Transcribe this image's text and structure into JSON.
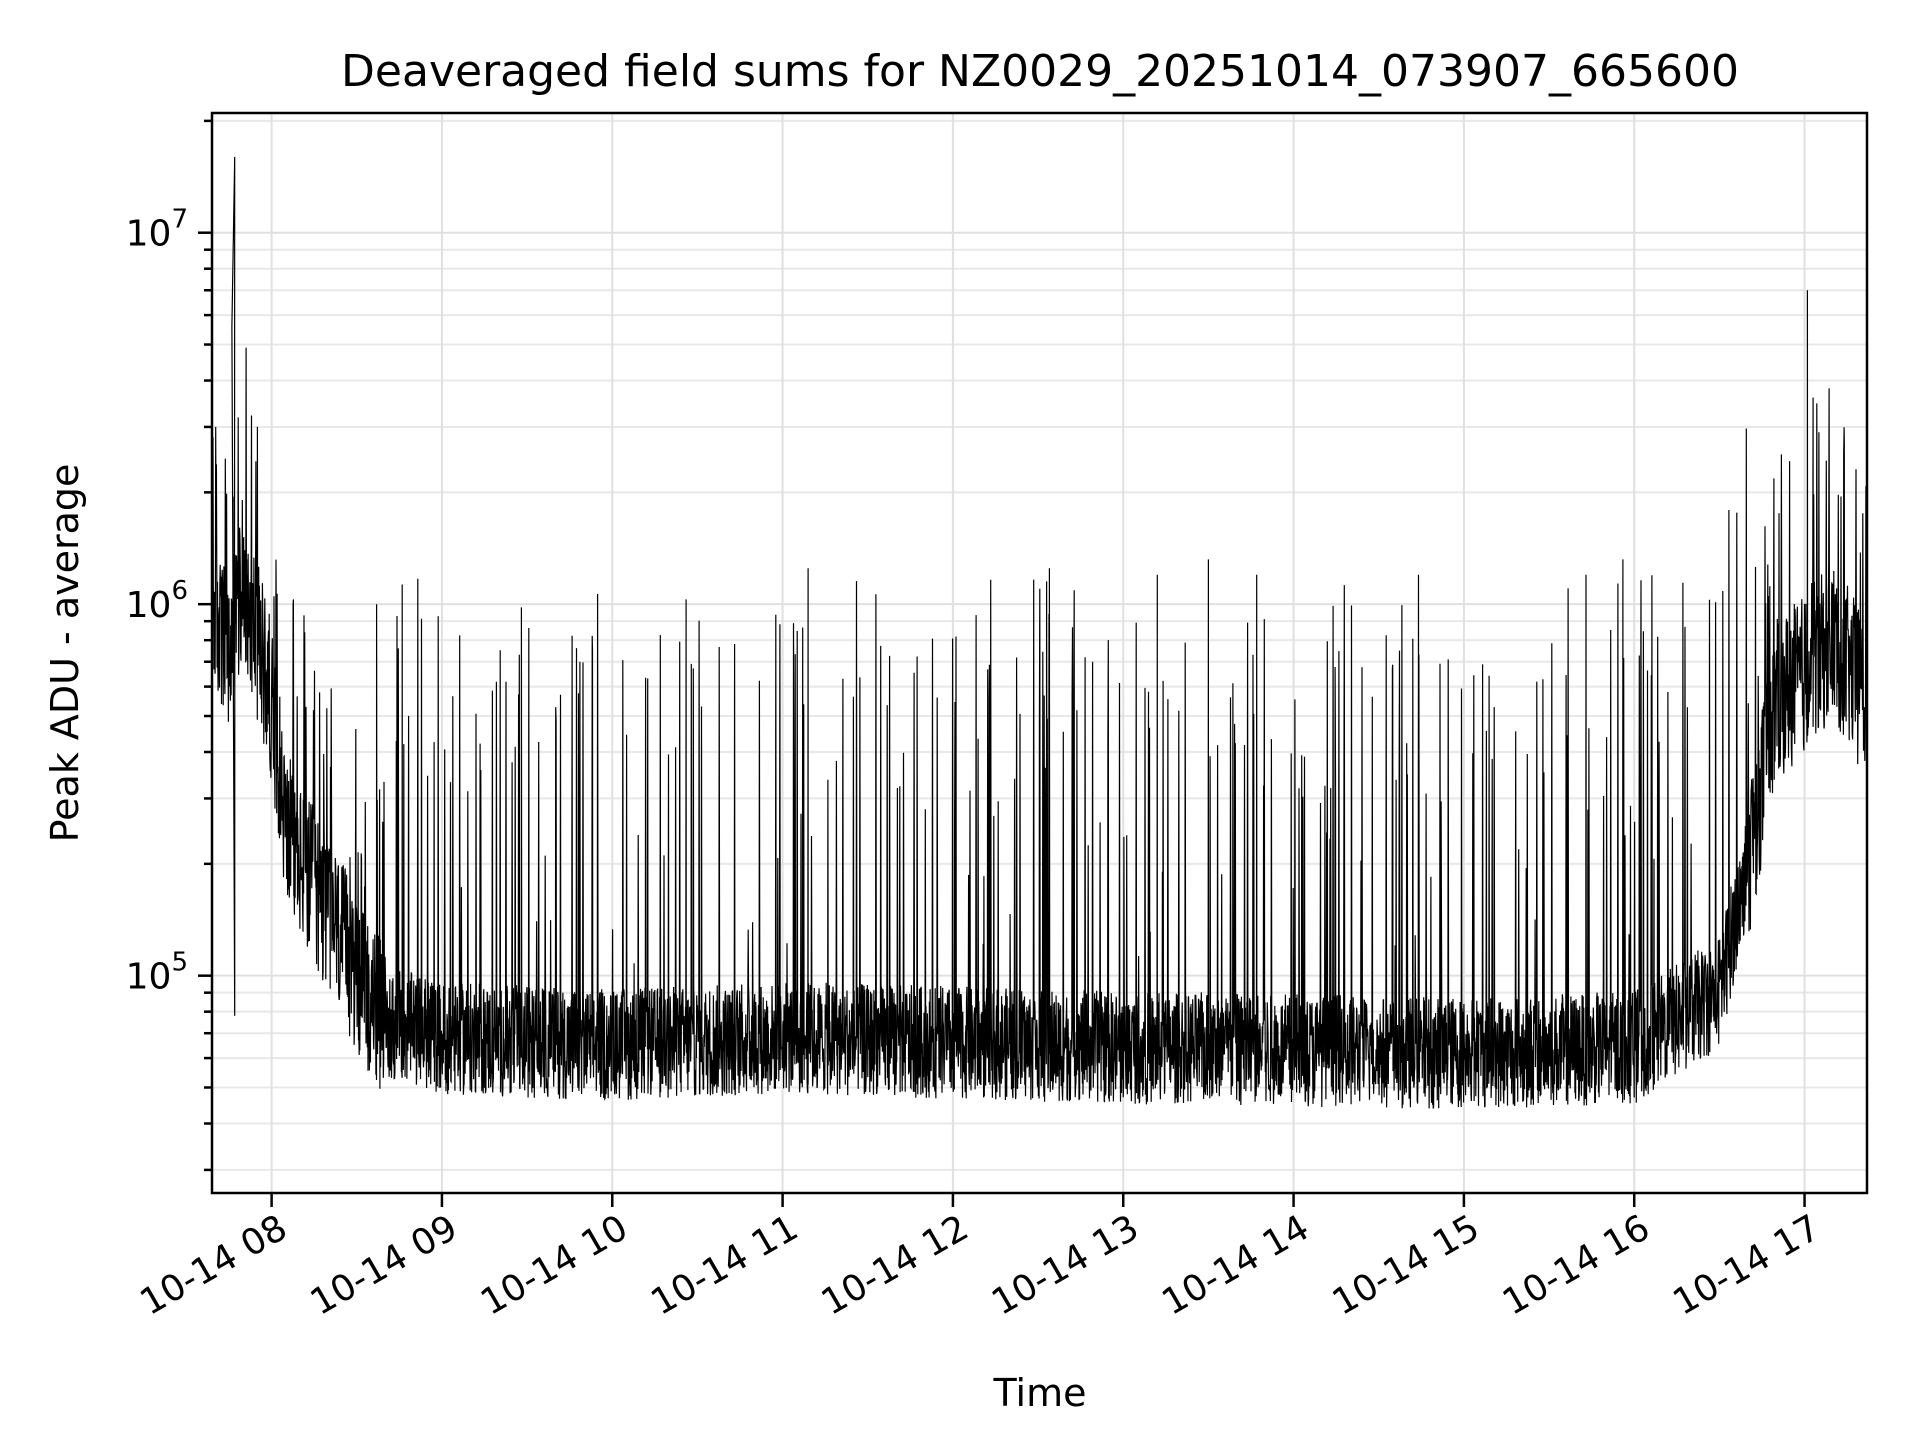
{
  "chart_data": {
    "type": "line",
    "title": "Deaveraged field sums for NZ0029_20251014_073907_665600",
    "xlabel": "Time",
    "ylabel": "Peak ADU - average",
    "yscale": "log",
    "grid": true,
    "line_color": "#000000",
    "x_tick_labels": [
      "10-14 08",
      "10-14 09",
      "10-14 10",
      "10-14 11",
      "10-14 12",
      "10-14 13",
      "10-14 14",
      "10-14 15",
      "10-14 16",
      "10-14 17"
    ],
    "y_tick_labels": [
      {
        "base": "10",
        "exp": "5",
        "value": 100000
      },
      {
        "base": "10",
        "exp": "6",
        "value": 1000000
      },
      {
        "base": "10",
        "exp": "7",
        "value": 10000000
      }
    ],
    "xlim": [
      "2025-10-14 07:39",
      "2025-10-14 17:22"
    ],
    "ylim": [
      26000,
      21000000
    ],
    "series": [
      {
        "values_summary": "noisy time series, ~1e6 at start, drops to ~6e4 baseline from 08:30 to 16:30 with frequent spikes up to ~1.3e6, rises to ~6e5 after 16:45",
        "points": [
          [
            "2025-10-14 07:39",
            1000000
          ],
          [
            "2025-10-14 07:45",
            700000
          ],
          [
            "2025-10-14 07:50",
            1200000
          ],
          [
            "2025-10-14 07:55",
            800000
          ],
          [
            "2025-10-14 08:00",
            550000
          ],
          [
            "2025-10-14 08:05",
            250000
          ],
          [
            "2025-10-14 08:10",
            200000
          ],
          [
            "2025-10-14 08:20",
            150000
          ],
          [
            "2025-10-14 08:30",
            100000
          ],
          [
            "2025-10-14 08:40",
            75000
          ],
          [
            "2025-10-14 09:00",
            68000
          ],
          [
            "2025-10-14 10:00",
            65000
          ],
          [
            "2025-10-14 11:00",
            68000
          ],
          [
            "2025-10-14 12:00",
            66000
          ],
          [
            "2025-10-14 13:00",
            64000
          ],
          [
            "2025-10-14 14:00",
            63000
          ],
          [
            "2025-10-14 15:00",
            62000
          ],
          [
            "2025-10-14 16:00",
            64000
          ],
          [
            "2025-10-14 16:30",
            90000
          ],
          [
            "2025-10-14 16:40",
            200000
          ],
          [
            "2025-10-14 16:50",
            550000
          ],
          [
            "2025-10-14 17:00",
            650000
          ],
          [
            "2025-10-14 17:10",
            800000
          ],
          [
            "2025-10-14 17:22",
            550000
          ]
        ],
        "spikes": [
          [
            "2025-10-14 07:47",
            16000000
          ],
          [
            "2025-10-14 07:46",
            5600000
          ],
          [
            "2025-10-14 07:47",
            78000
          ],
          [
            "2025-10-14 07:55",
            3000000
          ],
          [
            "2025-10-14 08:37",
            1000000
          ],
          [
            "2025-10-14 08:46",
            1130000
          ],
          [
            "2025-10-14 09:28",
            980000
          ],
          [
            "2025-10-14 10:26",
            1030000
          ],
          [
            "2025-10-14 11:09",
            1250000
          ],
          [
            "2025-10-14 12:34",
            1250000
          ],
          [
            "2025-10-14 13:12",
            1200000
          ],
          [
            "2025-10-14 13:30",
            1320000
          ],
          [
            "2025-10-14 13:47",
            1200000
          ],
          [
            "2025-10-14 14:44",
            1200000
          ],
          [
            "2025-10-14 15:43",
            1200000
          ],
          [
            "2025-10-14 15:56",
            1320000
          ],
          [
            "2025-10-14 17:01",
            7000000
          ],
          [
            "2025-10-14 17:03",
            3600000
          ],
          [
            "2025-10-14 17:14",
            2700000
          ]
        ]
      }
    ]
  }
}
